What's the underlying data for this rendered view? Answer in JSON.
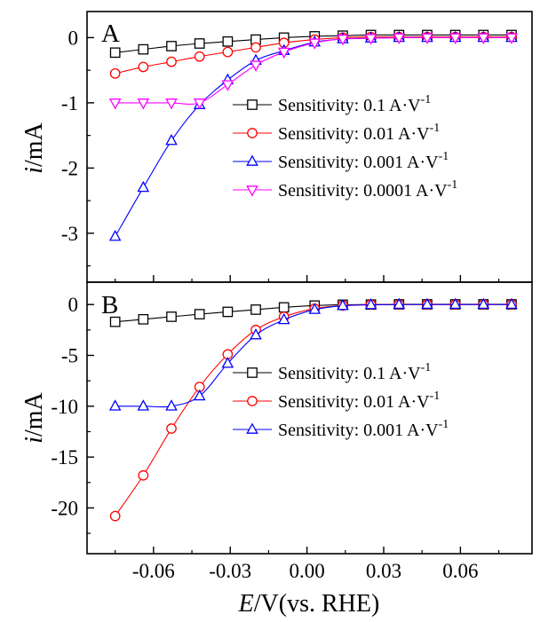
{
  "chart_data": [
    {
      "type": "line",
      "panel_label": "A",
      "ylabel": "i/mA",
      "ylabel_parts": {
        "symbol": "i",
        "unit": "/mA"
      },
      "ylim": [
        -3.75,
        0.4
      ],
      "yticks": [
        0,
        -1,
        -2,
        -3
      ],
      "ytick_labels": [
        "0",
        "-1",
        "-2",
        "-3"
      ],
      "legend_position": "center-right",
      "x": [
        -0.075,
        -0.064,
        -0.053,
        -0.042,
        -0.031,
        -0.02,
        -0.009,
        0.003,
        0.014,
        0.025,
        0.036,
        0.047,
        0.058,
        0.069,
        0.08
      ],
      "series": [
        {
          "name": "Sensitivity: 0.1 A·V-1",
          "legend_text": "Sensitivity: 0.1 A·V",
          "legend_sup": "-1",
          "color": "#000000",
          "marker": "square",
          "values": [
            -0.23,
            -0.18,
            -0.13,
            -0.09,
            -0.06,
            -0.03,
            0.0,
            0.02,
            0.03,
            0.04,
            0.04,
            0.04,
            0.04,
            0.04,
            0.04
          ]
        },
        {
          "name": "Sensitivity: 0.01 A·V-1",
          "legend_text": "Sensitivity: 0.01 A·V",
          "legend_sup": "-1",
          "color": "#ff0000",
          "marker": "circle",
          "values": [
            -0.55,
            -0.45,
            -0.37,
            -0.29,
            -0.22,
            -0.15,
            -0.08,
            -0.03,
            0.0,
            0.01,
            0.01,
            0.01,
            0.01,
            0.01,
            0.01
          ]
        },
        {
          "name": "Sensitivity: 0.001 A·V-1",
          "legend_text": "Sensitivity: 0.001 A·V",
          "legend_sup": "-1",
          "color": "#0000ff",
          "marker": "triangle-up",
          "values": [
            -3.05,
            -2.3,
            -1.58,
            -1.03,
            -0.65,
            -0.35,
            -0.2,
            -0.07,
            -0.02,
            -0.01,
            0.0,
            0.0,
            0.0,
            0.0,
            0.0
          ]
        },
        {
          "name": "Sensitivity: 0.0001 A·V-1",
          "legend_text": "Sensitivity: 0.0001 A·V",
          "legend_sup": "-1",
          "color": "#ff00ff",
          "marker": "triangle-down",
          "values": [
            -1.0,
            -1.0,
            -1.0,
            -1.0,
            -0.72,
            -0.42,
            -0.22,
            -0.08,
            -0.02,
            -0.01,
            0.0,
            0.0,
            0.0,
            0.0,
            0.0
          ]
        }
      ]
    },
    {
      "type": "line",
      "panel_label": "B",
      "xlabel": "E/V(vs. RHE)",
      "xlabel_parts": {
        "symbol": "E",
        "unit": "/V(vs. RHE)"
      },
      "ylabel": "i/mA",
      "ylabel_parts": {
        "symbol": "i",
        "unit": "/mA"
      },
      "xlim": [
        -0.086,
        0.088
      ],
      "xticks": [
        -0.06,
        -0.03,
        0.0,
        0.03,
        0.06
      ],
      "xtick_labels": [
        "-0.06",
        "-0.03",
        "0.00",
        "0.03",
        "0.06"
      ],
      "ylim": [
        -24.5,
        2.2
      ],
      "yticks": [
        0,
        -5,
        -10,
        -15,
        -20
      ],
      "ytick_labels": [
        "0",
        "-5",
        "-10",
        "-15",
        "-20"
      ],
      "legend_position": "center-right",
      "x": [
        -0.075,
        -0.064,
        -0.053,
        -0.042,
        -0.031,
        -0.02,
        -0.009,
        0.003,
        0.014,
        0.025,
        0.036,
        0.047,
        0.058,
        0.069,
        0.08
      ],
      "series": [
        {
          "name": "Sensitivity: 0.1 A·V-1",
          "legend_text": "Sensitivity: 0.1 A·V",
          "legend_sup": "-1",
          "color": "#000000",
          "marker": "square",
          "values": [
            -1.7,
            -1.45,
            -1.2,
            -0.95,
            -0.72,
            -0.5,
            -0.28,
            -0.1,
            -0.02,
            0.0,
            0.02,
            0.02,
            0.02,
            0.02,
            0.02
          ]
        },
        {
          "name": "Sensitivity: 0.01 A·V-1",
          "legend_text": "Sensitivity: 0.01 A·V",
          "legend_sup": "-1",
          "color": "#ff0000",
          "marker": "circle",
          "values": [
            -20.8,
            -16.8,
            -12.2,
            -8.1,
            -4.9,
            -2.5,
            -1.2,
            -0.4,
            -0.1,
            0.0,
            0.0,
            0.0,
            0.0,
            0.0,
            0.0
          ]
        },
        {
          "name": "Sensitivity: 0.001 A·V-1",
          "legend_text": "Sensitivity: 0.001 A·V",
          "legend_sup": "-1",
          "color": "#0000ff",
          "marker": "triangle-up",
          "values": [
            -10.0,
            -10.0,
            -10.0,
            -9.0,
            -5.8,
            -3.0,
            -1.5,
            -0.5,
            -0.12,
            -0.03,
            0.0,
            0.0,
            0.0,
            0.0,
            0.0
          ]
        }
      ]
    }
  ]
}
